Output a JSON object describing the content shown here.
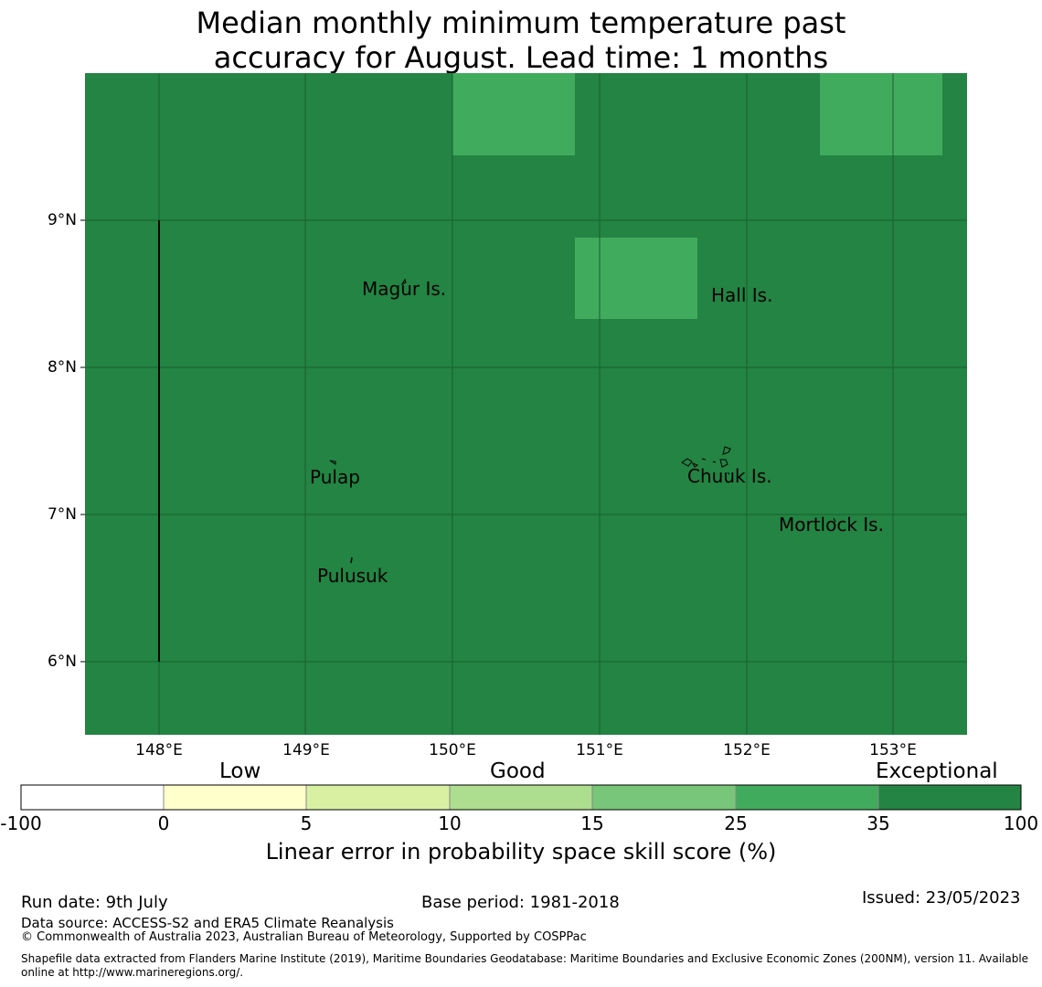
{
  "title": {
    "line1": "Median monthly minimum temperature past",
    "line2": "accuracy for August. Lead time: 1 months"
  },
  "map": {
    "background_color": "#238443",
    "highlight_color": "#41ab5d",
    "lat_labels": [
      "9°N",
      "8°N",
      "7°N",
      "6°N"
    ],
    "lon_labels": [
      "148°E",
      "149°E",
      "150°E",
      "151°E",
      "152°E",
      "153°E"
    ],
    "places": [
      "Magur Is.",
      "Hall Is.",
      "Pulap",
      "Chuuk Is.",
      "Mortlock Is.",
      "Pulusuk"
    ]
  },
  "colorbar": {
    "categories": [
      "Low",
      "Good",
      "Exceptional"
    ],
    "ticks": [
      "-100",
      "0",
      "5",
      "10",
      "15",
      "25",
      "35",
      "100"
    ],
    "colors": [
      "#ffffff",
      "#ffffcc",
      "#d9f0a3",
      "#addd8e",
      "#78c679",
      "#41ab5d",
      "#238443"
    ],
    "label": "Linear error in probability space skill score (%)"
  },
  "footer": {
    "run_date": "Run date: 9th July",
    "base_period": "Base period: 1981-2018",
    "issued": "Issued: 23/05/2023",
    "data_source": "Data source: ACCESS-S2 and ERA5 Climate Reanalysis",
    "copyright": "© Commonwealth of Australia 2023, Australian Bureau of Meteorology, Supported by COSPPac",
    "shapefile_line1": "Shapefile data extracted from Flanders Marine Institute (2019), Maritime Boundaries Geodatabase: Maritime Boundaries and Exclusive Economic Zones (200NM), version 11. Available",
    "shapefile_line2": "online at http://www.marineregions.org/."
  }
}
